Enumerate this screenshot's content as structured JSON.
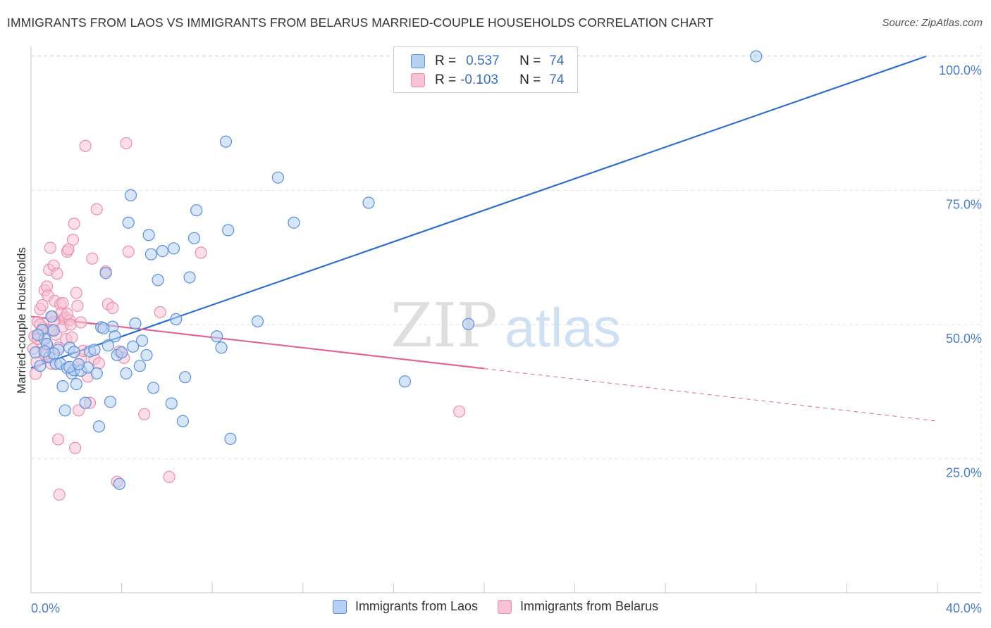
{
  "title": "IMMIGRANTS FROM LAOS VS IMMIGRANTS FROM BELARUS MARRIED-COUPLE HOUSEHOLDS CORRELATION CHART",
  "source": "Source: ZipAtlas.com",
  "watermark": {
    "zip": "ZIP",
    "atlas": "atlas"
  },
  "legend": {
    "r_label": "R =",
    "n_label": "N =",
    "rows": [
      {
        "r": "0.537",
        "n": "74"
      },
      {
        "r": "-0.103",
        "n": "74"
      }
    ]
  },
  "colors": {
    "laos_fill": "#b7d0f3",
    "laos_stroke": "#5b8fd9",
    "laos_line": "#2d6fd0",
    "belarus_fill": "#f7c2d3",
    "belarus_stroke": "#e98fae",
    "belarus_line": "#e0649a",
    "grid": "#e3e3e3",
    "axis_text": "#4a7cc9"
  },
  "chart_data": {
    "type": "scatter",
    "title": "IMMIGRANTS FROM LAOS VS IMMIGRANTS FROM BELARUS MARRIED-COUPLE HOUSEHOLDS CORRELATION CHART",
    "xlabel": "",
    "ylabel": "Married-couple Households",
    "xlim": [
      0,
      40
    ],
    "ylim": [
      0,
      103
    ],
    "x_tick_labels": [
      "0.0%",
      "40.0%"
    ],
    "y_ticks": [
      25,
      50,
      75,
      100
    ],
    "y_tick_labels": [
      "25.0%",
      "50.0%",
      "75.0%",
      "100.0%"
    ],
    "grid": true,
    "legend_position": "top-center",
    "series": [
      {
        "name": "Immigrants from Laos",
        "r": 0.537,
        "n": 74,
        "trend": {
          "x0": 0.0,
          "y0": 41.9,
          "x1": 39.5,
          "y1": 100.0,
          "dashed_to": null
        },
        "points": [
          [
            0.2,
            44.8
          ],
          [
            0.4,
            42.3
          ],
          [
            0.5,
            49.0
          ],
          [
            0.6,
            47.3
          ],
          [
            0.7,
            46.4
          ],
          [
            0.8,
            43.9
          ],
          [
            0.9,
            51.5
          ],
          [
            1.0,
            48.9
          ],
          [
            1.1,
            42.7
          ],
          [
            1.2,
            45.3
          ],
          [
            1.3,
            42.7
          ],
          [
            1.4,
            38.5
          ],
          [
            1.5,
            34.0
          ],
          [
            1.6,
            41.9
          ],
          [
            1.7,
            45.7
          ],
          [
            1.8,
            40.9
          ],
          [
            1.9,
            41.5
          ],
          [
            2.0,
            38.9
          ],
          [
            2.2,
            41.4
          ],
          [
            2.4,
            35.4
          ],
          [
            2.6,
            45.0
          ],
          [
            2.8,
            45.3
          ],
          [
            3.0,
            31.0
          ],
          [
            3.1,
            49.5
          ],
          [
            3.3,
            59.6
          ],
          [
            3.4,
            46.1
          ],
          [
            3.6,
            49.6
          ],
          [
            3.5,
            35.6
          ],
          [
            3.7,
            47.8
          ],
          [
            3.8,
            44.3
          ],
          [
            4.0,
            44.8
          ],
          [
            4.2,
            40.9
          ],
          [
            4.3,
            69.0
          ],
          [
            4.4,
            74.1
          ],
          [
            4.6,
            50.2
          ],
          [
            4.8,
            42.3
          ],
          [
            4.9,
            47.0
          ],
          [
            5.1,
            44.3
          ],
          [
            5.2,
            66.7
          ],
          [
            5.3,
            63.1
          ],
          [
            5.4,
            38.2
          ],
          [
            5.6,
            58.3
          ],
          [
            5.8,
            63.7
          ],
          [
            6.2,
            35.3
          ],
          [
            6.3,
            64.2
          ],
          [
            6.4,
            51.0
          ],
          [
            6.7,
            32.0
          ],
          [
            6.8,
            40.2
          ],
          [
            7.0,
            58.8
          ],
          [
            7.2,
            66.1
          ],
          [
            7.3,
            71.3
          ],
          [
            8.2,
            47.8
          ],
          [
            8.4,
            45.7
          ],
          [
            8.6,
            84.1
          ],
          [
            8.7,
            67.6
          ],
          [
            8.8,
            28.7
          ],
          [
            10.0,
            50.6
          ],
          [
            10.9,
            77.4
          ],
          [
            11.6,
            69.0
          ],
          [
            14.9,
            72.7
          ],
          [
            16.5,
            39.4
          ],
          [
            19.3,
            50.1
          ],
          [
            32.0,
            100.0
          ],
          [
            2.9,
            40.9
          ],
          [
            1.9,
            44.9
          ],
          [
            3.9,
            20.3
          ],
          [
            0.3,
            48.1
          ],
          [
            1.0,
            44.6
          ],
          [
            2.5,
            42.0
          ],
          [
            0.6,
            45.0
          ],
          [
            4.5,
            45.9
          ],
          [
            1.7,
            42.1
          ],
          [
            3.2,
            49.3
          ],
          [
            2.1,
            42.6
          ]
        ]
      },
      {
        "name": "Immigrants from Belarus",
        "r": -0.103,
        "n": 74,
        "trend": {
          "x0": 0.0,
          "y0": 51.5,
          "x1": 20.0,
          "y1": 41.8,
          "dashed_to": {
            "x": 40.0,
            "y": 32.0
          }
        },
        "points": [
          [
            0.1,
            45.5
          ],
          [
            0.15,
            47.8
          ],
          [
            0.2,
            40.8
          ],
          [
            0.25,
            43.0
          ],
          [
            0.3,
            50.5
          ],
          [
            0.35,
            48.0
          ],
          [
            0.4,
            52.9
          ],
          [
            0.45,
            46.7
          ],
          [
            0.5,
            53.6
          ],
          [
            0.55,
            49.3
          ],
          [
            0.6,
            56.4
          ],
          [
            0.65,
            44.2
          ],
          [
            0.7,
            57.1
          ],
          [
            0.75,
            55.4
          ],
          [
            0.8,
            60.2
          ],
          [
            0.85,
            64.3
          ],
          [
            0.9,
            42.7
          ],
          [
            0.95,
            51.5
          ],
          [
            1.0,
            61.0
          ],
          [
            1.05,
            54.4
          ],
          [
            1.1,
            48.1
          ],
          [
            1.15,
            59.5
          ],
          [
            1.2,
            28.6
          ],
          [
            1.25,
            18.3
          ],
          [
            1.3,
            53.8
          ],
          [
            1.35,
            52.2
          ],
          [
            1.4,
            49.6
          ],
          [
            1.45,
            51.0
          ],
          [
            1.5,
            51.3
          ],
          [
            1.55,
            47.3
          ],
          [
            1.6,
            63.6
          ],
          [
            1.65,
            64.0
          ],
          [
            1.7,
            50.8
          ],
          [
            1.75,
            50.0
          ],
          [
            1.8,
            47.6
          ],
          [
            1.85,
            65.8
          ],
          [
            1.9,
            68.8
          ],
          [
            1.95,
            27.0
          ],
          [
            2.0,
            55.9
          ],
          [
            2.05,
            53.5
          ],
          [
            2.1,
            34.0
          ],
          [
            2.2,
            43.6
          ],
          [
            2.3,
            45.1
          ],
          [
            2.4,
            83.3
          ],
          [
            2.5,
            40.3
          ],
          [
            2.6,
            35.4
          ],
          [
            2.7,
            62.3
          ],
          [
            2.8,
            43.6
          ],
          [
            2.9,
            71.5
          ],
          [
            3.0,
            42.8
          ],
          [
            3.3,
            59.9
          ],
          [
            3.4,
            53.8
          ],
          [
            3.6,
            53.1
          ],
          [
            3.8,
            20.7
          ],
          [
            3.9,
            45.0
          ],
          [
            4.1,
            43.8
          ],
          [
            4.2,
            83.8
          ],
          [
            4.3,
            63.6
          ],
          [
            5.0,
            33.3
          ],
          [
            5.7,
            52.3
          ],
          [
            6.1,
            21.6
          ],
          [
            7.5,
            63.4
          ],
          [
            18.9,
            33.8
          ],
          [
            0.5,
            49.3
          ],
          [
            1.0,
            50.5
          ],
          [
            0.7,
            46.2
          ],
          [
            1.2,
            45.7
          ],
          [
            0.3,
            47.3
          ],
          [
            2.2,
            50.4
          ],
          [
            0.9,
            49.0
          ],
          [
            1.6,
            52.0
          ],
          [
            0.4,
            50.0
          ],
          [
            1.4,
            54.0
          ],
          [
            0.6,
            44.5
          ]
        ]
      }
    ]
  },
  "bottom_legend": [
    "Immigrants from Laos",
    "Immigrants from Belarus"
  ]
}
